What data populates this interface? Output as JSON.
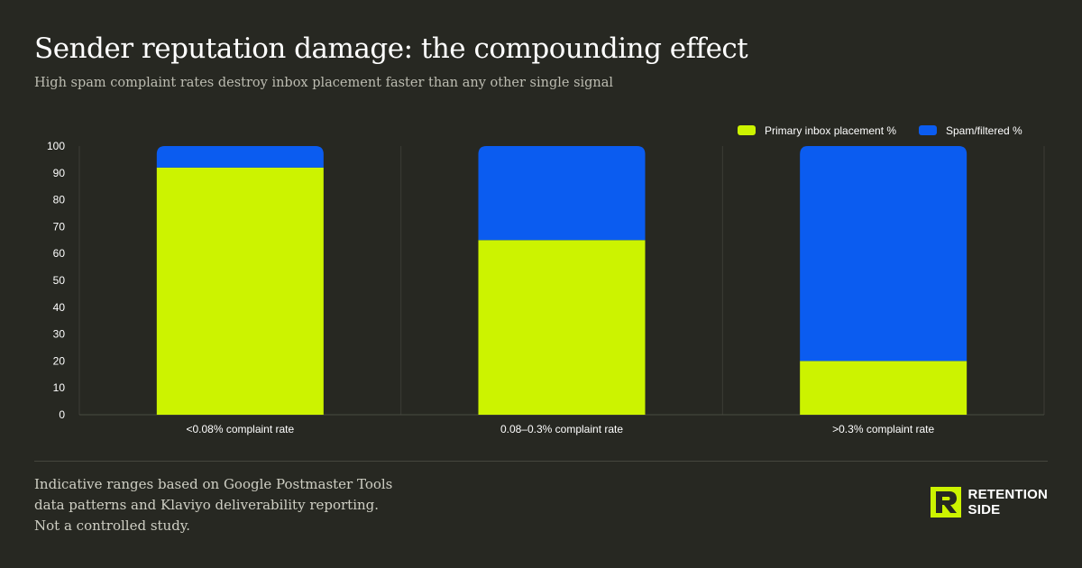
{
  "header": {
    "title": "Sender reputation damage: the compounding effect",
    "subtitle": "High spam complaint rates destroy inbox placement faster than any other single signal"
  },
  "chart_data": {
    "type": "bar",
    "stacked": true,
    "title": "",
    "xlabel": "",
    "ylabel": "",
    "ylim": [
      0,
      100
    ],
    "yticks": [
      0,
      10,
      20,
      30,
      40,
      50,
      60,
      70,
      80,
      90,
      100
    ],
    "categories": [
      "<0.08% complaint rate",
      "0.08–0.3% complaint rate",
      ">0.3% complaint rate"
    ],
    "series": [
      {
        "name": "Primary inbox placement %",
        "color": "#ccf300",
        "values": [
          92,
          65,
          20
        ]
      },
      {
        "name": "Spam/filtered %",
        "color": "#0b5cf0",
        "values": [
          8,
          35,
          80
        ]
      }
    ],
    "legend_position": "top-right",
    "grid": "vertical category separators"
  },
  "footer": {
    "note_lines": [
      "Indicative ranges based on Google Postmaster Tools",
      "data patterns and Klaviyo deliverability reporting.",
      "Not a controlled study."
    ],
    "brand_line1": "RETENTION",
    "brand_line2": "SIDE",
    "brand_icon": "retention-side-logo-icon"
  },
  "colors": {
    "background": "#272822",
    "accent_green": "#ccf300",
    "accent_blue": "#0b5cf0"
  }
}
